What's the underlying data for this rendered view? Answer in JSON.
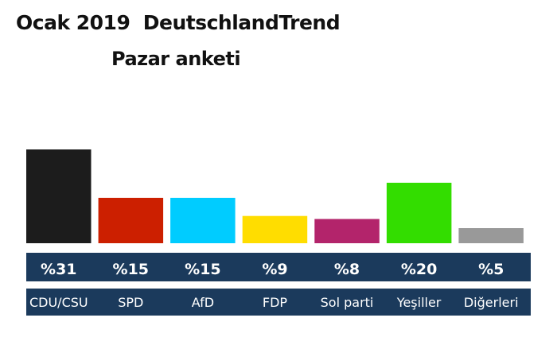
{
  "header": {
    "title": "Ocak 2019  DeutschlandTrend",
    "subtitle": "Pazar anketi"
  },
  "chart_data": {
    "type": "bar",
    "title": "Ocak 2019  DeutschlandTrend",
    "subtitle": "Pazar anketi",
    "categories": [
      "CDU/CSU",
      "SPD",
      "AfD",
      "FDP",
      "Sol parti",
      "Yeşiller",
      "Diğerleri"
    ],
    "values": [
      31,
      15,
      15,
      9,
      8,
      20,
      5
    ],
    "value_labels": [
      "%31",
      "%15",
      "%15",
      "%9",
      "%8",
      "%20",
      "%5"
    ],
    "colors": [
      "#1c1c1c",
      "#cc1f00",
      "#00ccff",
      "#ffdd00",
      "#b3246b",
      "#33dd00",
      "#999999"
    ],
    "xlabel": "",
    "ylabel": "",
    "ylim": [
      0,
      31
    ],
    "grid": false,
    "legend": "none"
  }
}
